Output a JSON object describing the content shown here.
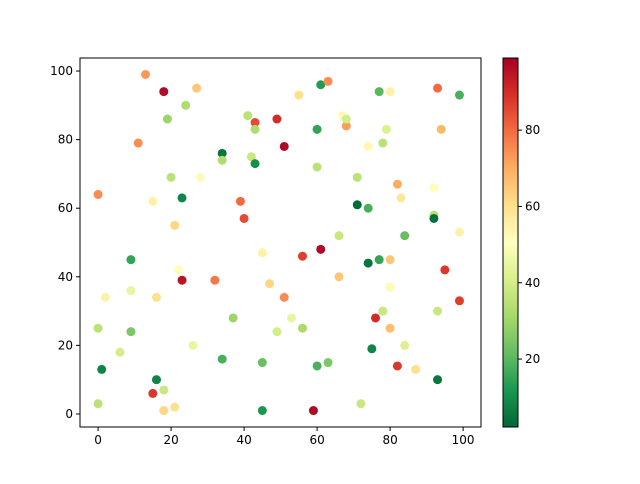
{
  "chart_data": {
    "type": "scatter",
    "x": [
      0,
      0,
      0,
      1,
      2,
      6,
      9,
      9,
      9,
      11,
      13,
      15,
      15,
      16,
      16,
      18,
      18,
      18,
      19,
      20,
      21,
      21,
      22,
      23,
      23,
      24,
      26,
      27,
      28,
      32,
      34,
      34,
      34,
      37,
      39,
      40,
      41,
      42,
      43,
      43,
      43,
      45,
      45,
      45,
      47,
      49,
      49,
      51,
      51,
      53,
      55,
      56,
      56,
      59,
      60,
      60,
      60,
      61,
      61,
      63,
      63,
      66,
      66,
      67,
      68,
      68,
      71,
      71,
      72,
      74,
      74,
      74,
      75,
      76,
      77,
      77,
      78,
      78,
      79,
      80,
      80,
      80,
      80,
      82,
      82,
      83,
      84,
      84,
      87,
      92,
      92,
      92,
      93,
      93,
      93,
      94,
      95,
      99,
      99,
      99
    ],
    "values": [
      64,
      25,
      3,
      13,
      34,
      18,
      45,
      36,
      24,
      79,
      99,
      62,
      6,
      10,
      34,
      94,
      7,
      1,
      86,
      69,
      55,
      2,
      42,
      63,
      39,
      90,
      20,
      95,
      69,
      39,
      76,
      74,
      16,
      28,
      62,
      57,
      87,
      75,
      85,
      83,
      73,
      47,
      15,
      1,
      38,
      86,
      24,
      78,
      34,
      28,
      93,
      46,
      25,
      1,
      83,
      72,
      14,
      96,
      48,
      97,
      15,
      52,
      40,
      87,
      84,
      86,
      69,
      61,
      3,
      78,
      60,
      44,
      19,
      28,
      94,
      45,
      79,
      30,
      83,
      94,
      45,
      37,
      25,
      67,
      14,
      63,
      52,
      20,
      13,
      66,
      58,
      57,
      95,
      10,
      30,
      83,
      42,
      93,
      53,
      33
    ],
    "color_values": [
      75,
      35,
      35,
      8,
      55,
      40,
      15,
      45,
      25,
      75,
      73,
      55,
      88,
      8,
      60,
      97,
      38,
      62,
      30,
      35,
      62,
      60,
      50,
      8,
      95,
      33,
      45,
      65,
      52,
      78,
      5,
      33,
      18,
      30,
      80,
      85,
      35,
      38,
      85,
      33,
      10,
      55,
      22,
      12,
      62,
      90,
      40,
      97,
      75,
      45,
      60,
      87,
      32,
      97,
      15,
      35,
      18,
      13,
      97,
      75,
      25,
      38,
      65,
      52,
      72,
      40,
      35,
      3,
      38,
      53,
      18,
      5,
      8,
      90,
      20,
      15,
      35,
      38,
      42,
      55,
      65,
      52,
      67,
      70,
      88,
      58,
      22,
      42,
      60,
      50,
      35,
      4,
      80,
      5,
      38,
      68,
      88,
      18,
      55,
      87
    ],
    "colormap": [
      "#006837",
      "#1a9850",
      "#66bd63",
      "#a6d96a",
      "#d9ef8b",
      "#ffffbf",
      "#fee08b",
      "#fdae61",
      "#f46d43",
      "#d73027",
      "#a50026"
    ],
    "xlim": [
      -4.95,
      104.9
    ],
    "xticks": [
      0,
      20,
      40,
      60,
      80,
      100
    ],
    "ylim": [
      -3.8,
      103.8
    ],
    "yticks": [
      0,
      20,
      40,
      60,
      80,
      100
    ],
    "clim": [
      2.2,
      98.9
    ],
    "cticks": [
      20,
      40,
      60,
      80
    ]
  }
}
